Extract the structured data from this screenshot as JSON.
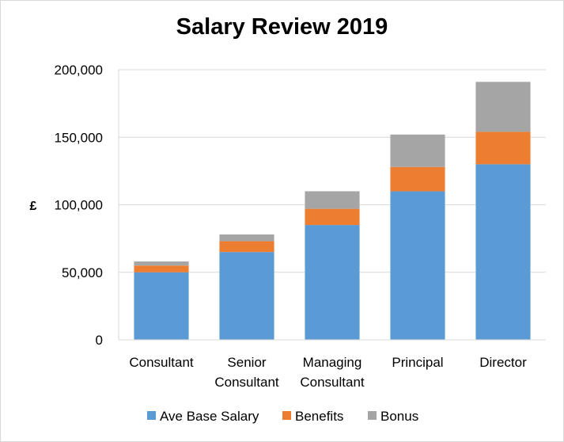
{
  "chart_data": {
    "type": "bar",
    "stacked": true,
    "title": "Salary Review 2019",
    "xlabel": "",
    "ylabel": "£",
    "ylim": [
      0,
      200000
    ],
    "yticks": [
      0,
      50000,
      100000,
      150000,
      200000
    ],
    "ytick_labels": [
      "0",
      "50,000",
      "100,000",
      "150,000",
      "200,000"
    ],
    "grid": true,
    "legend_position": "bottom",
    "categories": [
      [
        "Consultant"
      ],
      [
        "Senior",
        "Consultant"
      ],
      [
        "Managing",
        "Consultant"
      ],
      [
        "Principal"
      ],
      [
        "Director"
      ]
    ],
    "series": [
      {
        "name": "Ave Base Salary",
        "color": "#5b9bd5",
        "values": [
          50000,
          65000,
          85000,
          110000,
          130000
        ]
      },
      {
        "name": "Benefits",
        "color": "#ed7d31",
        "values": [
          5000,
          8000,
          12000,
          18000,
          24000
        ]
      },
      {
        "name": "Bonus",
        "color": "#a5a5a5",
        "values": [
          3000,
          5000,
          13000,
          24000,
          37000
        ]
      }
    ]
  }
}
